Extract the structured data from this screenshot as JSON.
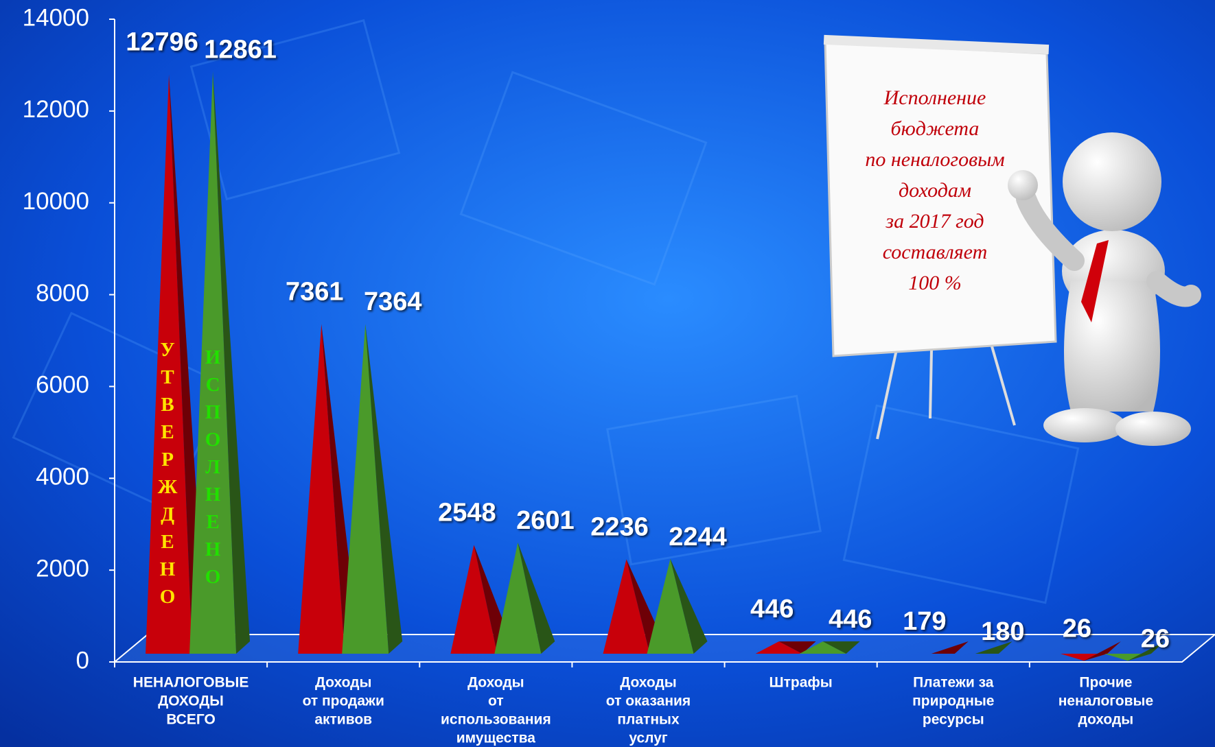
{
  "chart_data": {
    "type": "pyramid",
    "categories": [
      [
        "НЕНАЛОГОВЫЕ",
        "ДОХОДЫ",
        "ВСЕГО"
      ],
      [
        "Доходы",
        "от продажи",
        "активов"
      ],
      [
        "Доходы",
        "от",
        "использования",
        "имущества"
      ],
      [
        "Доходы",
        "от оказания",
        "платных",
        "услуг"
      ],
      [
        "Штрафы"
      ],
      [
        "Платежи за",
        "природные",
        "ресурсы"
      ],
      [
        "Прочие",
        "неналоговые",
        "доходы"
      ]
    ],
    "series": [
      {
        "name": "УТВЕРЖДЕНО",
        "color": "#c8000a",
        "label_color": "#ffe400",
        "values": [
          12796,
          7361,
          2548,
          2236,
          446,
          179,
          26
        ]
      },
      {
        "name": "ИСПОЛНЕНО",
        "color": "#4a9a2a",
        "label_color": "#22e000",
        "values": [
          12861,
          7364,
          2601,
          2244,
          446,
          180,
          26
        ]
      }
    ],
    "ylim": [
      0,
      14000
    ],
    "yticks": [
      0,
      2000,
      4000,
      6000,
      8000,
      10000,
      12000,
      14000
    ],
    "annotation": [
      "Исполнение",
      "бюджета",
      "по неналоговым",
      "доходам",
      "за 2017 год",
      "составляет",
      "100 %"
    ]
  }
}
